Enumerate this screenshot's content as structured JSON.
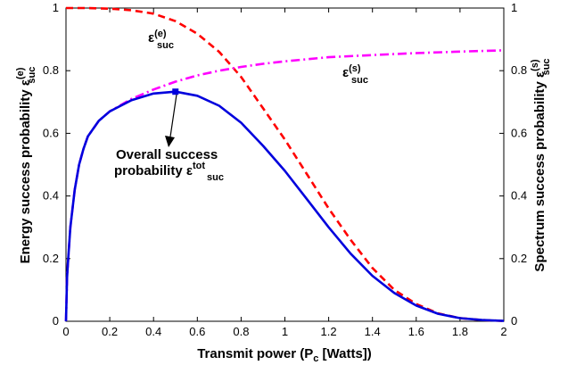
{
  "chart_data": {
    "type": "line",
    "xlabel": {
      "main": "Transmit power (P",
      "sub": "c",
      "tail": " [Watts])"
    },
    "ylabel_left": {
      "main": "Energy success probability ε",
      "sup": "(e)",
      "sub": "suc"
    },
    "ylabel_right": {
      "main": "Spectrum success probability ε",
      "sup": "(s)",
      "sub": "suc"
    },
    "xlim": [
      0,
      2
    ],
    "ylim": [
      0,
      1
    ],
    "x_ticks": [
      "0",
      "0.2",
      "0.4",
      "0.6",
      "0.8",
      "1",
      "1.2",
      "1.4",
      "1.6",
      "1.8",
      "2"
    ],
    "y_ticks": [
      "0",
      "0.2",
      "0.4",
      "0.6",
      "0.8",
      "1"
    ],
    "grid": false,
    "series": [
      {
        "key": "energy",
        "color": "#ff0000",
        "dash": "8,5",
        "x": [
          0,
          0.1,
          0.2,
          0.3,
          0.4,
          0.5,
          0.6,
          0.7,
          0.8,
          0.9,
          1.0,
          1.1,
          1.2,
          1.3,
          1.4,
          1.5,
          1.6,
          1.7,
          1.8,
          1.9,
          2.0
        ],
        "y": [
          1.0,
          1.0,
          0.998,
          0.993,
          0.982,
          0.958,
          0.918,
          0.86,
          0.78,
          0.68,
          0.58,
          0.47,
          0.36,
          0.26,
          0.17,
          0.1,
          0.055,
          0.025,
          0.01,
          0.004,
          0.001
        ]
      },
      {
        "key": "spectrum",
        "color": "#ff00ff",
        "dash": "10,4,2,4",
        "x": [
          0,
          0.005,
          0.01,
          0.02,
          0.04,
          0.06,
          0.08,
          0.1,
          0.15,
          0.2,
          0.3,
          0.4,
          0.5,
          0.6,
          0.7,
          0.8,
          0.9,
          1.0,
          1.2,
          1.4,
          1.6,
          1.8,
          2.0
        ],
        "y": [
          0,
          0.14,
          0.2,
          0.3,
          0.42,
          0.5,
          0.55,
          0.59,
          0.64,
          0.67,
          0.71,
          0.74,
          0.765,
          0.785,
          0.8,
          0.812,
          0.822,
          0.83,
          0.843,
          0.85,
          0.856,
          0.861,
          0.865
        ]
      },
      {
        "key": "overall",
        "color": "#0000dd",
        "dash": "",
        "x": [
          0,
          0.005,
          0.01,
          0.02,
          0.04,
          0.06,
          0.08,
          0.1,
          0.15,
          0.2,
          0.3,
          0.4,
          0.5,
          0.6,
          0.7,
          0.8,
          0.9,
          1.0,
          1.1,
          1.2,
          1.3,
          1.4,
          1.5,
          1.6,
          1.7,
          1.8,
          1.9,
          2.0
        ],
        "y": [
          0,
          0.14,
          0.2,
          0.3,
          0.42,
          0.5,
          0.55,
          0.59,
          0.64,
          0.67,
          0.706,
          0.727,
          0.733,
          0.72,
          0.688,
          0.634,
          0.56,
          0.48,
          0.39,
          0.3,
          0.216,
          0.145,
          0.09,
          0.05,
          0.024,
          0.01,
          0.004,
          0.001
        ]
      }
    ],
    "marker": {
      "x": 0.5,
      "y": 0.733,
      "color": "#0000dd"
    },
    "annotations": {
      "energy_label": {
        "main": "ε",
        "sup": "(e)",
        "sub": "suc"
      },
      "spectrum_label": {
        "main": "ε",
        "sup": "(s)",
        "sub": "suc"
      },
      "overall_line1": "Overall success",
      "overall_line2": {
        "main": "probability ε",
        "sup": "tot",
        "sub": "suc"
      }
    }
  }
}
